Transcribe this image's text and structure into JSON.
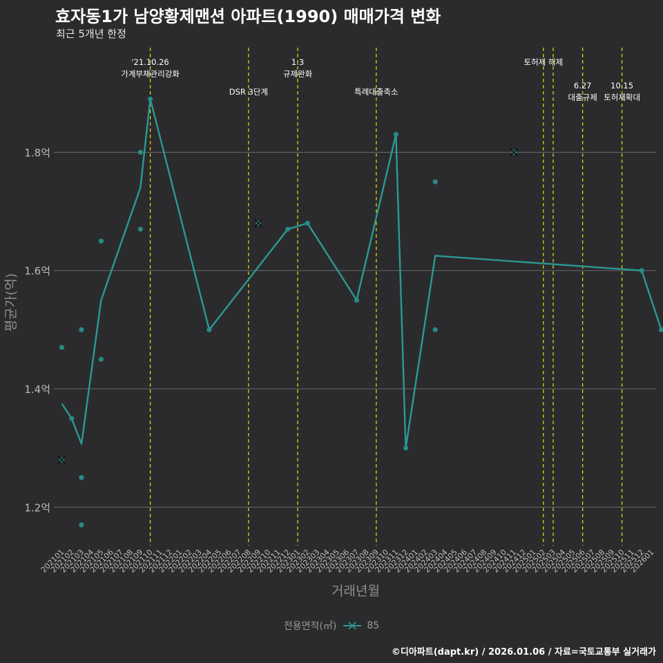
{
  "title": "효자동1가 남양황제맨션 아파트(1990) 매매가격 변화",
  "subtitle": "최근 5개년 한정",
  "caption": "©디아파트(dapt.kr) / 2026.01.06 / 자료=국토교통부 실거래가",
  "colors": {
    "background": "#2b2b2d",
    "grid": "#6a6a6a",
    "series": "#2a9a94",
    "point": "#2a8a85",
    "event_line": "#e8e000"
  },
  "chart_data": {
    "type": "line",
    "xlabel": "거래년월",
    "ylabel": "평균가(억)",
    "ylim": [
      1.135,
      1.985
    ],
    "yticks": [
      1.2,
      1.4,
      1.6,
      1.8
    ],
    "ytick_labels": [
      "1.2억",
      "1.4억",
      "1.6억",
      "1.8억"
    ],
    "categories": [
      "202101",
      "202102",
      "202103",
      "202104",
      "202105",
      "202106",
      "202107",
      "202108",
      "202109",
      "202110",
      "202111",
      "202112",
      "202201",
      "202202",
      "202203",
      "202204",
      "202205",
      "202206",
      "202207",
      "202208",
      "202209",
      "202210",
      "202211",
      "202212",
      "202301",
      "202302",
      "202303",
      "202304",
      "202305",
      "202306",
      "202307",
      "202308",
      "202309",
      "202310",
      "202311",
      "202312",
      "202401",
      "202402",
      "202403",
      "202404",
      "202405",
      "202406",
      "202407",
      "202408",
      "202409",
      "202410",
      "202411",
      "202412",
      "202501",
      "202502",
      "202503",
      "202504",
      "202505",
      "202506",
      "202507",
      "202508",
      "202509",
      "202510",
      "202511",
      "202512",
      "202601"
    ],
    "series": [
      {
        "name": "85",
        "line": [
          {
            "x": "202101",
            "y": 1.375
          },
          {
            "x": "202102",
            "y": 1.35
          },
          {
            "x": "202103",
            "y": 1.307
          },
          {
            "x": "202105",
            "y": 1.55
          },
          {
            "x": "202109",
            "y": 1.74
          },
          {
            "x": "202110",
            "y": 1.89
          },
          {
            "x": "202204",
            "y": 1.5
          },
          {
            "x": "202212",
            "y": 1.67
          },
          {
            "x": "202302",
            "y": 1.68
          },
          {
            "x": "202307",
            "y": 1.55
          },
          {
            "x": "202311",
            "y": 1.83
          },
          {
            "x": "202312",
            "y": 1.3
          },
          {
            "x": "202403",
            "y": 1.625
          },
          {
            "x": "202512",
            "y": 1.6
          },
          {
            "x": "202602",
            "y": 1.5
          }
        ],
        "points": [
          {
            "x": "202101",
            "y": 1.47
          },
          {
            "x": "202102",
            "y": 1.35
          },
          {
            "x": "202103",
            "y": 1.5
          },
          {
            "x": "202103",
            "y": 1.25
          },
          {
            "x": "202103",
            "y": 1.17
          },
          {
            "x": "202105",
            "y": 1.65
          },
          {
            "x": "202105",
            "y": 1.45
          },
          {
            "x": "202109",
            "y": 1.8
          },
          {
            "x": "202109",
            "y": 1.67
          },
          {
            "x": "202110",
            "y": 1.89
          },
          {
            "x": "202204",
            "y": 1.5
          },
          {
            "x": "202212",
            "y": 1.67
          },
          {
            "x": "202302",
            "y": 1.68
          },
          {
            "x": "202307",
            "y": 1.55
          },
          {
            "x": "202311",
            "y": 1.83
          },
          {
            "x": "202312",
            "y": 1.3
          },
          {
            "x": "202403",
            "y": 1.75
          },
          {
            "x": "202403",
            "y": 1.5
          },
          {
            "x": "202512",
            "y": 1.6
          },
          {
            "x": "202602",
            "y": 1.5
          }
        ],
        "crosses": [
          {
            "x": "202101",
            "y": 1.28
          },
          {
            "x": "202209",
            "y": 1.68
          },
          {
            "x": "202411",
            "y": 1.8
          }
        ]
      }
    ],
    "events": [
      {
        "x": "202110",
        "lines": [
          "'21.10.26",
          "가계부채관리강화"
        ],
        "row": "top"
      },
      {
        "x": "202208",
        "lines": [
          "DSR 3단계"
        ],
        "row": "low"
      },
      {
        "x": "202301",
        "lines": [
          "1.3",
          "규제완화"
        ],
        "row": "top"
      },
      {
        "x": "202309",
        "lines": [
          "특례대출축소"
        ],
        "row": "low"
      },
      {
        "x": "202502",
        "lines": [
          "토허제 해제"
        ],
        "row": "top"
      },
      {
        "x": "202503",
        "lines": [],
        "row": "top"
      },
      {
        "x": "202506",
        "lines": [
          "6.27",
          "대출규제"
        ],
        "row": "mid"
      },
      {
        "x": "202510",
        "lines": [
          "10.15",
          "토허제확대"
        ],
        "row": "mid"
      }
    ],
    "legend": {
      "title": "전용면적(㎡)",
      "entries": [
        "85"
      ]
    }
  }
}
